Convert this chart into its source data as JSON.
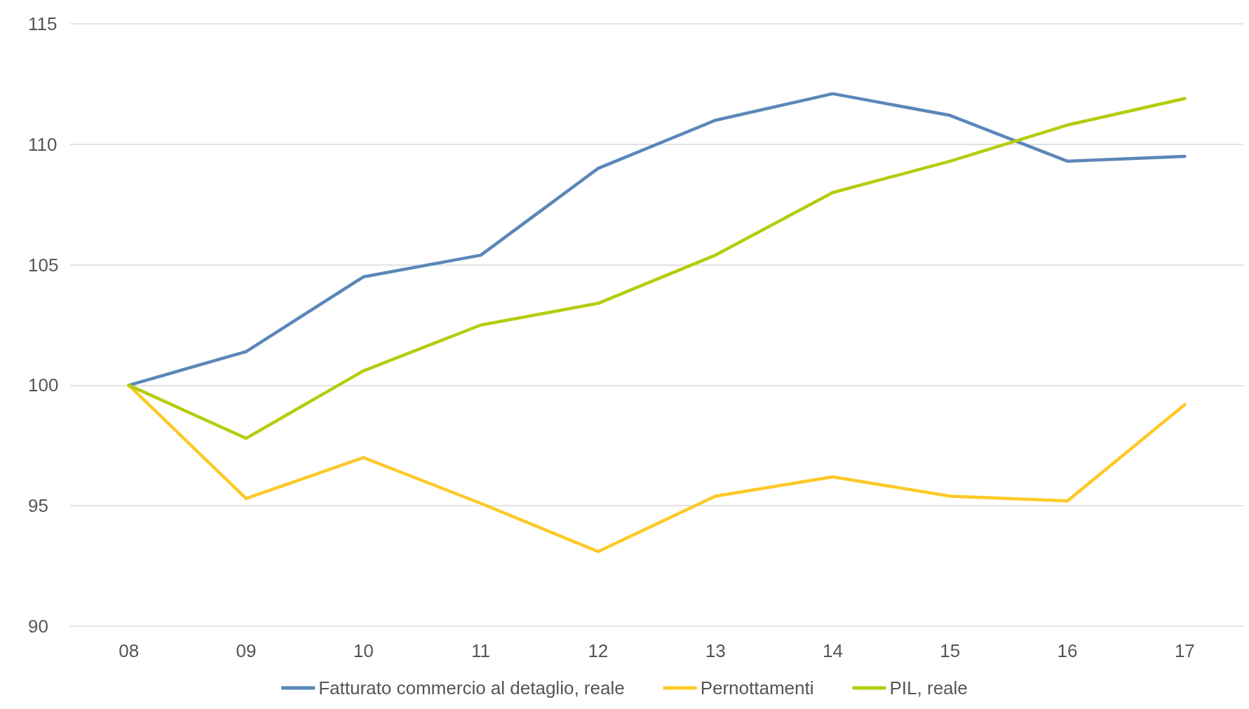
{
  "chart_data": {
    "type": "line",
    "categories": [
      "08",
      "09",
      "10",
      "11",
      "12",
      "13",
      "14",
      "15",
      "16",
      "17"
    ],
    "series": [
      {
        "name": "Fatturato commercio al detaglio, reale",
        "color": "#5a87b8",
        "values": [
          100,
          101.4,
          104.5,
          105.4,
          109.0,
          111.0,
          112.1,
          111.2,
          109.3,
          109.5
        ]
      },
      {
        "name": "Pernottamenti",
        "color": "#fdc927",
        "values": [
          100,
          95.3,
          97.0,
          95.1,
          93.1,
          95.4,
          96.2,
          95.4,
          95.2,
          99.2
        ]
      },
      {
        "name": "PIL, reale",
        "color": "#b5cc0e",
        "values": [
          100,
          97.8,
          100.6,
          102.5,
          103.4,
          105.4,
          108.0,
          109.3,
          110.8,
          111.9
        ]
      }
    ],
    "ylim": [
      90,
      115
    ],
    "yticks": [
      90,
      95,
      100,
      105,
      110,
      115
    ],
    "grid": "y",
    "legend": "bottom",
    "marker": "none",
    "line_style": "solid"
  }
}
